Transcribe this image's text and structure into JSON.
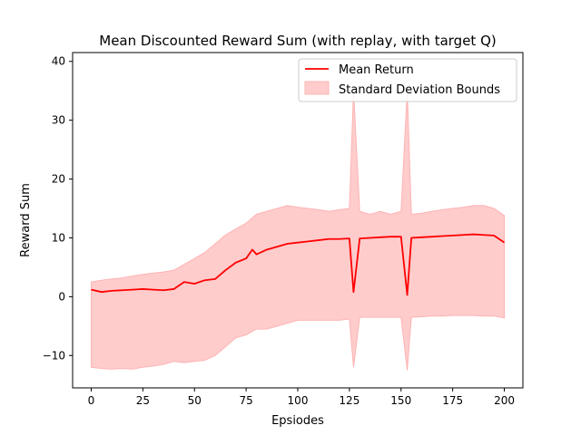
{
  "chart_data": {
    "type": "line",
    "title": "Mean Discounted Reward Sum (with replay, with target Q)",
    "xlabel": "Epsiodes",
    "ylabel": "Reward Sum",
    "xlim": [
      -9,
      209
    ],
    "ylim": [
      -15.5,
      41.5
    ],
    "xticks": [
      0,
      25,
      50,
      75,
      100,
      125,
      150,
      175,
      200
    ],
    "yticks": [
      -10,
      0,
      10,
      20,
      30,
      40
    ],
    "xtick_labels": [
      "0",
      "25",
      "50",
      "75",
      "100",
      "125",
      "150",
      "175",
      "200"
    ],
    "ytick_labels": [
      "−10",
      "0",
      "10",
      "20",
      "30",
      "40"
    ],
    "grid": false,
    "legend_position": "top-right",
    "legend": [
      "Mean Return",
      "Standard Deviation Bounds"
    ],
    "colors": {
      "line": "#ff0000",
      "band": "#ffcccc",
      "band_edge": "#ffb3b3"
    },
    "series": [
      {
        "name": "Mean Return",
        "x": [
          0,
          5,
          10,
          15,
          20,
          25,
          30,
          35,
          40,
          45,
          50,
          55,
          60,
          65,
          70,
          75,
          78,
          80,
          85,
          90,
          95,
          100,
          105,
          110,
          115,
          120,
          125,
          127,
          130,
          135,
          140,
          145,
          150,
          153,
          155,
          160,
          165,
          170,
          175,
          180,
          185,
          190,
          195,
          200
        ],
        "y": [
          1.2,
          0.8,
          1.0,
          1.1,
          1.2,
          1.3,
          1.2,
          1.1,
          1.3,
          2.5,
          2.2,
          2.8,
          3.0,
          4.5,
          5.8,
          6.5,
          8.0,
          7.2,
          8.0,
          8.5,
          9.0,
          9.2,
          9.4,
          9.6,
          9.8,
          9.8,
          9.9,
          0.8,
          9.9,
          10.0,
          10.1,
          10.2,
          10.2,
          0.3,
          10.0,
          10.1,
          10.2,
          10.3,
          10.4,
          10.5,
          10.6,
          10.5,
          10.4,
          9.2
        ]
      },
      {
        "name": "Standard Deviation Bounds",
        "x": [
          0,
          5,
          10,
          15,
          20,
          25,
          30,
          35,
          40,
          45,
          50,
          55,
          60,
          65,
          70,
          75,
          80,
          85,
          90,
          95,
          100,
          105,
          110,
          115,
          120,
          125,
          127,
          130,
          135,
          140,
          145,
          150,
          153,
          155,
          160,
          165,
          170,
          175,
          180,
          185,
          190,
          195,
          200
        ],
        "upper": [
          2.5,
          2.8,
          3.0,
          3.2,
          3.5,
          3.8,
          4.0,
          4.2,
          4.5,
          5.5,
          6.5,
          7.5,
          9.0,
          10.5,
          11.5,
          12.5,
          14.0,
          14.5,
          15.0,
          15.5,
          15.2,
          15.0,
          14.8,
          14.5,
          14.8,
          15.0,
          35.0,
          14.5,
          14.0,
          14.5,
          14.0,
          14.5,
          35.0,
          14.0,
          14.2,
          14.5,
          14.8,
          15.0,
          15.2,
          15.5,
          15.5,
          15.0,
          13.8
        ],
        "lower": [
          -12.0,
          -12.2,
          -12.3,
          -12.2,
          -12.3,
          -12.0,
          -11.8,
          -11.5,
          -11.0,
          -11.2,
          -11.0,
          -10.8,
          -10.0,
          -8.5,
          -7.0,
          -6.5,
          -5.5,
          -5.5,
          -5.0,
          -4.5,
          -4.0,
          -4.0,
          -4.0,
          -4.0,
          -4.0,
          -3.8,
          -12.0,
          -3.5,
          -3.5,
          -3.5,
          -3.5,
          -3.5,
          -12.5,
          -3.5,
          -3.4,
          -3.3,
          -3.3,
          -3.2,
          -3.2,
          -3.2,
          -3.3,
          -3.3,
          -3.6
        ]
      }
    ]
  }
}
